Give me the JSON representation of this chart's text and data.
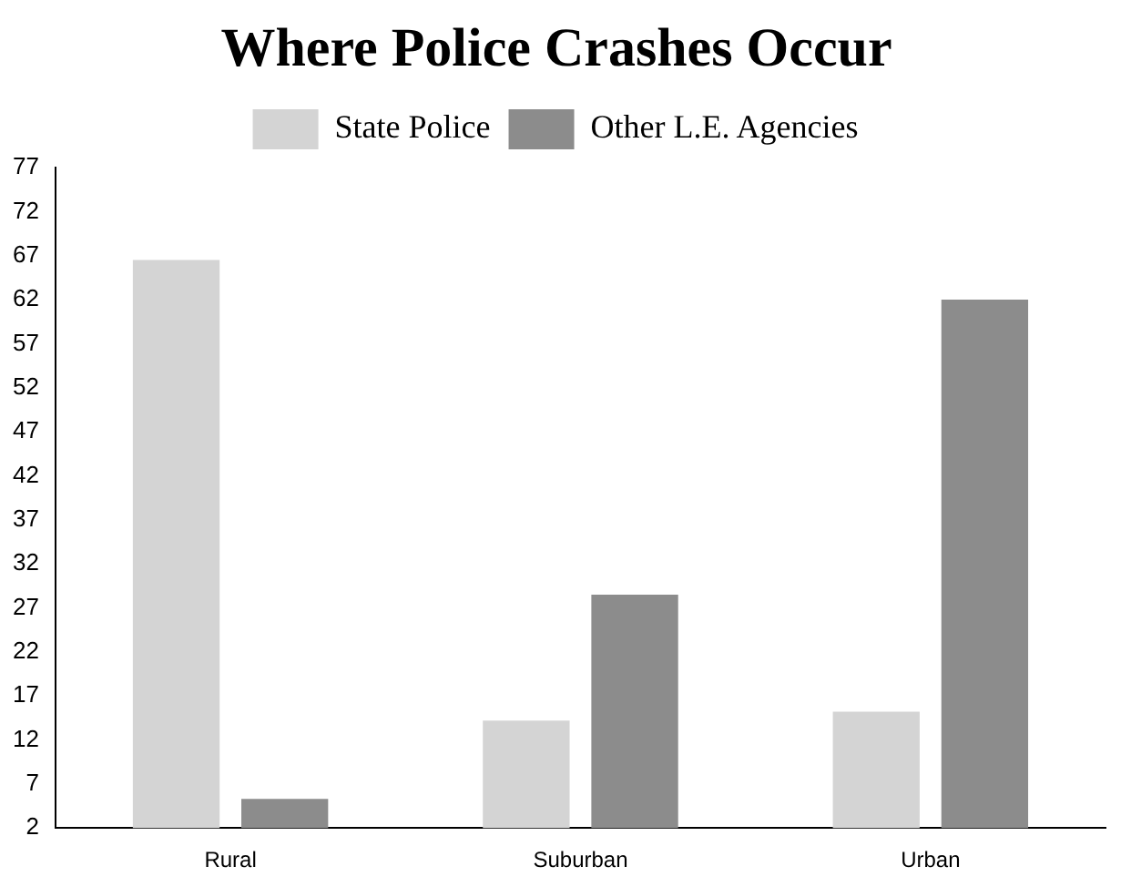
{
  "chart_data": {
    "type": "bar",
    "title": "Where Police Crashes Occur",
    "categories": [
      "Rural",
      "Suburban",
      "Urban"
    ],
    "series": [
      {
        "name": "State Police",
        "color": "#d4d4d4",
        "values": [
          66.5,
          14.2,
          15.2
        ]
      },
      {
        "name": "Other L.E. Agencies",
        "color": "#8c8c8c",
        "values": [
          5.3,
          28.5,
          62
        ]
      }
    ],
    "ylim": [
      2,
      77
    ],
    "yticks": [
      2,
      7,
      12,
      17,
      22,
      27,
      32,
      37,
      42,
      47,
      52,
      57,
      62,
      67,
      72,
      77
    ],
    "grid": false,
    "legend": "top"
  }
}
